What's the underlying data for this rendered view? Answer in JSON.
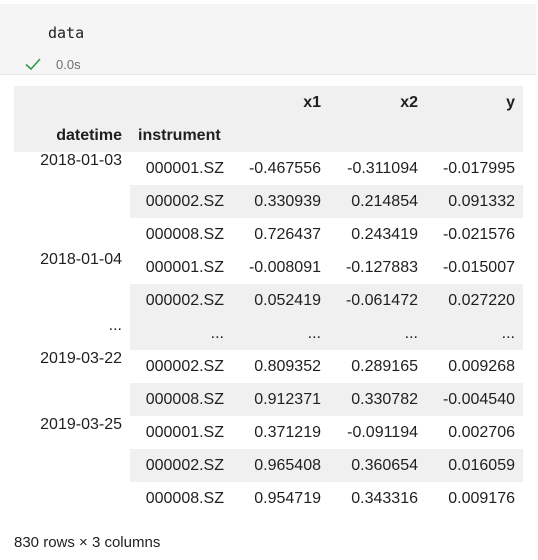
{
  "cell": {
    "code": "data",
    "status_icon": "checkmark-icon",
    "status_color": "#2e9a4a",
    "exec_time": "0.0s"
  },
  "table": {
    "columns": [
      "x1",
      "x2",
      "y"
    ],
    "index_names": [
      "datetime",
      "instrument"
    ],
    "rows": [
      {
        "datetime": "2018-01-03",
        "instrument": "000001.SZ",
        "x1": "-0.467556",
        "x2": "-0.311094",
        "y": "-0.017995"
      },
      {
        "datetime": "",
        "instrument": "000002.SZ",
        "x1": "0.330939",
        "x2": "0.214854",
        "y": "0.091332"
      },
      {
        "datetime": "",
        "instrument": "000008.SZ",
        "x1": "0.726437",
        "x2": "0.243419",
        "y": "-0.021576"
      },
      {
        "datetime": "2018-01-04",
        "instrument": "000001.SZ",
        "x1": "-0.008091",
        "x2": "-0.127883",
        "y": "-0.015007"
      },
      {
        "datetime": "",
        "instrument": "000002.SZ",
        "x1": "0.052419",
        "x2": "-0.061472",
        "y": "0.027220"
      },
      {
        "datetime": "...",
        "instrument": "...",
        "x1": "...",
        "x2": "...",
        "y": "..."
      },
      {
        "datetime": "2019-03-22",
        "instrument": "000002.SZ",
        "x1": "0.809352",
        "x2": "0.289165",
        "y": "0.009268"
      },
      {
        "datetime": "",
        "instrument": "000008.SZ",
        "x1": "0.912371",
        "x2": "0.330782",
        "y": "-0.004540"
      },
      {
        "datetime": "2019-03-25",
        "instrument": "000001.SZ",
        "x1": "0.371219",
        "x2": "-0.091194",
        "y": "0.002706"
      },
      {
        "datetime": "",
        "instrument": "000002.SZ",
        "x1": "0.965408",
        "x2": "0.360654",
        "y": "0.016059"
      },
      {
        "datetime": "",
        "instrument": "000008.SZ",
        "x1": "0.954719",
        "x2": "0.343316",
        "y": "0.009176"
      }
    ],
    "footer": "830 rows × 3 columns"
  }
}
